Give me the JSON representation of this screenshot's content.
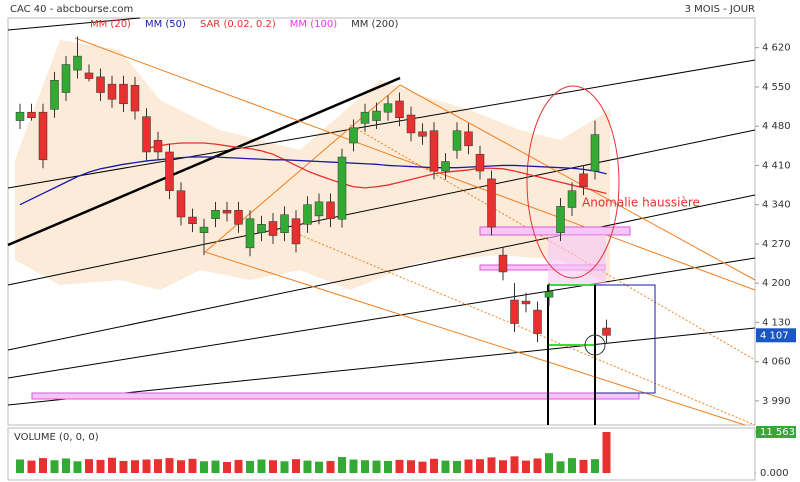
{
  "header": {
    "title": "CAC 40 - abcbourse.com",
    "period": "3 MOIS - JOUR"
  },
  "chart_data": {
    "type": "candlestick",
    "annotation": "Anomalie haussière",
    "up_color": "#33aa33",
    "down_color": "#e83030",
    "open": [
      4490,
      4505,
      4505,
      4510,
      4540,
      4580,
      4575,
      4568,
      4555,
      4555,
      4553,
      4497,
      4455,
      4434,
      4365,
      4318,
      4290,
      4315,
      4330,
      4330,
      4263,
      4290,
      4310,
      4290,
      4315,
      4305,
      4320,
      4345,
      4314,
      4450,
      4485,
      4490,
      4505,
      4525,
      4500,
      4470,
      4472,
      4400,
      4437,
      4470,
      4430,
      4386,
      4250,
      4170,
      4168,
      4152,
      4175,
      4290,
      4335,
      4395,
      4400,
      4120
    ],
    "close": [
      4505,
      4495,
      4420,
      4562,
      4590,
      4605,
      4565,
      4540,
      4528,
      4520,
      4507,
      4434,
      4434,
      4365,
      4318,
      4306,
      4300,
      4330,
      4325,
      4305,
      4315,
      4305,
      4285,
      4322,
      4270,
      4340,
      4345,
      4315,
      4425,
      4477,
      4505,
      4507,
      4520,
      4495,
      4468,
      4462,
      4400,
      4417,
      4472,
      4445,
      4400,
      4300,
      4220,
      4128,
      4163,
      4110,
      4185,
      4337,
      4365,
      4372,
      4465,
      4107
    ],
    "high": [
      4520,
      4520,
      4520,
      4577,
      4605,
      4640,
      4590,
      4583,
      4570,
      4570,
      4568,
      4512,
      4470,
      4449,
      4380,
      4333,
      4315,
      4345,
      4345,
      4345,
      4330,
      4320,
      4325,
      4337,
      4330,
      4355,
      4360,
      4360,
      4440,
      4492,
      4520,
      4522,
      4535,
      4540,
      4515,
      4485,
      4487,
      4432,
      4487,
      4485,
      4445,
      4401,
      4265,
      4200,
      4183,
      4167,
      4200,
      4352,
      4380,
      4410,
      4490,
      4135
    ],
    "low": [
      4475,
      4490,
      4405,
      4495,
      4525,
      4565,
      4560,
      4525,
      4513,
      4505,
      4492,
      4419,
      4419,
      4350,
      4303,
      4291,
      4250,
      4300,
      4310,
      4290,
      4248,
      4275,
      4270,
      4275,
      4255,
      4290,
      4305,
      4300,
      4299,
      4435,
      4470,
      4475,
      4490,
      4480,
      4453,
      4447,
      4385,
      4385,
      4422,
      4430,
      4385,
      4285,
      4205,
      4113,
      4148,
      4095,
      4160,
      4275,
      4320,
      4357,
      4385,
      4092
    ],
    "indicators": [
      {
        "name": "MM (20)",
        "color": "#e83030",
        "values": [
          null,
          null,
          null,
          null,
          null,
          null,
          null,
          null,
          null,
          null,
          null,
          4440,
          4445,
          4448,
          4450,
          4450,
          4450,
          4448,
          4445,
          4442,
          4440,
          4436,
          4430,
          4420,
          4410,
          4400,
          4392,
          4385,
          4378,
          4372,
          4370,
          4372,
          4375,
          4380,
          4385,
          4390,
          4395,
          4398,
          4400,
          4402,
          4405,
          4405,
          4404,
          4400,
          4395,
          4390,
          4385,
          4380,
          4375,
          4370,
          4365,
          4360
        ]
      },
      {
        "name": "MM (50)",
        "color": "#1a1aaa",
        "values": [
          4340,
          4350,
          4360,
          4370,
          4380,
          4390,
          4398,
          4404,
          4408,
          4412,
          4415,
          4418,
          4420,
          4422,
          4424,
          4425,
          4425,
          4425,
          4424,
          4423,
          4422,
          4421,
          4420,
          4420,
          4419,
          4418,
          4417,
          4416,
          4415,
          4414,
          4413,
          4412,
          4410,
          4409,
          4408,
          4407,
          4406,
          4406,
          4406,
          4407,
          4408,
          4409,
          4410,
          4410,
          4409,
          4408,
          4407,
          4406,
          4405,
          4403,
          4400,
          4395
        ]
      },
      {
        "name": "SAR (0.02, 0.2)",
        "color": "#e83030"
      },
      {
        "name": "MM (100)",
        "color": "#ee33ee"
      },
      {
        "name": "MM (200)",
        "color": "#333333"
      }
    ],
    "ylim": [
      3947,
      4673
    ],
    "yticks": [
      {
        "value": 3990,
        "label": "3 990"
      },
      {
        "value": 4060,
        "label": "4 060"
      },
      {
        "value": 4130,
        "label": "4 130"
      },
      {
        "value": 4200,
        "label": "4 200"
      },
      {
        "value": 4270,
        "label": "4 270"
      },
      {
        "value": 4340,
        "label": "4 340"
      },
      {
        "value": 4410,
        "label": "4 410"
      },
      {
        "value": 4480,
        "label": "4 480"
      },
      {
        "value": 4550,
        "label": "4 550"
      },
      {
        "value": 4620,
        "label": "4 620"
      }
    ],
    "last_price": {
      "value": 4107,
      "label": "4 107"
    },
    "volume": {
      "title": "VOLUME (0, 0, 0)",
      "values": [
        3800,
        3500,
        4200,
        3600,
        4100,
        3300,
        3900,
        3700,
        4300,
        3400,
        3600,
        3800,
        3900,
        4200,
        3600,
        4000,
        3300,
        3500,
        3100,
        3700,
        3400,
        3800,
        3600,
        3300,
        3900,
        3500,
        3200,
        3400,
        4500,
        3800,
        3600,
        3500,
        3400,
        3700,
        3600,
        3200,
        4000,
        3500,
        3400,
        3800,
        3900,
        4400,
        3600,
        4700,
        3500,
        4100,
        5600,
        3300,
        4200,
        3700,
        3900,
        11563
      ],
      "ylim": [
        0,
        11563
      ],
      "yticks": [
        {
          "value": 11563,
          "label": "11 563"
        },
        {
          "value": 0,
          "label": "0.000"
        }
      ]
    }
  }
}
